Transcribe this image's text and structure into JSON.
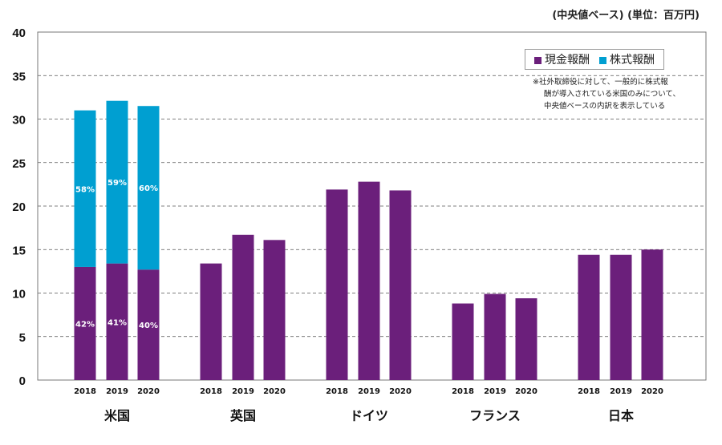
{
  "chart_data": {
    "type": "bar",
    "stacked": true,
    "unit_label": "(中央値ベース) (単位：百万円)",
    "ylim": [
      0,
      40
    ],
    "yticks": [
      0,
      5,
      10,
      15,
      20,
      25,
      30,
      35,
      40
    ],
    "grid": "dashed horizontal",
    "legend_position": "top-right",
    "colors": {
      "cash": "#6B1F7B",
      "stock": "#009FD1"
    },
    "series": [
      {
        "name": "現金報酬",
        "key": "cash"
      },
      {
        "name": "株式報酬",
        "key": "stock"
      }
    ],
    "groups": [
      {
        "country": "米国",
        "years": [
          "2018",
          "2019",
          "2020"
        ],
        "cash": [
          13.0,
          13.4,
          12.7
        ],
        "stock": [
          18.0,
          18.7,
          18.8
        ],
        "cash_pct": [
          "42%",
          "41%",
          "40%"
        ],
        "stock_pct": [
          "58%",
          "59%",
          "60%"
        ]
      },
      {
        "country": "英国",
        "years": [
          "2018",
          "2019",
          "2020"
        ],
        "cash": [
          13.4,
          16.7,
          16.1
        ]
      },
      {
        "country": "ドイツ",
        "years": [
          "2018",
          "2019",
          "2020"
        ],
        "cash": [
          21.9,
          22.8,
          21.8
        ]
      },
      {
        "country": "フランス",
        "years": [
          "2018",
          "2019",
          "2020"
        ],
        "cash": [
          8.8,
          9.9,
          9.4
        ]
      },
      {
        "country": "日本",
        "years": [
          "2018",
          "2019",
          "2020"
        ],
        "cash": [
          14.4,
          14.4,
          15.0
        ]
      }
    ],
    "note": [
      "※社外取締役に対して、一般的に株式報",
      "酬が導入されている米国のみについて、",
      "中央値ベースの内訳を表示している"
    ]
  }
}
